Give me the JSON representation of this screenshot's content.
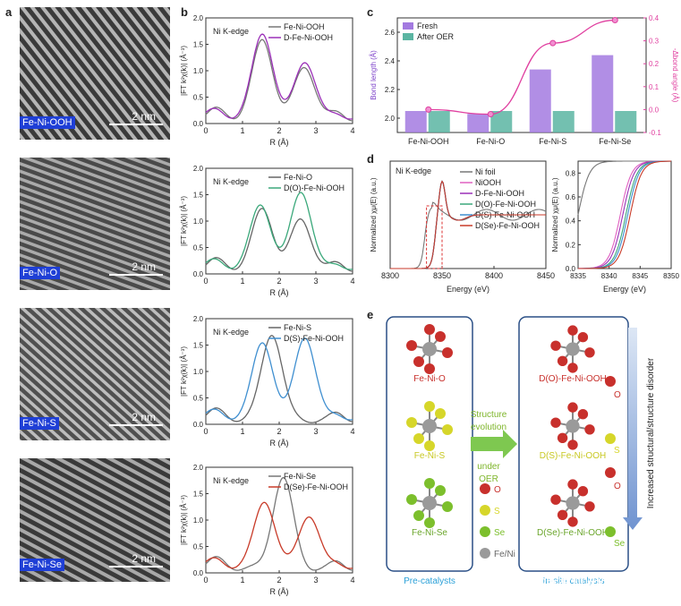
{
  "panel_labels": {
    "a": "a",
    "b": "b",
    "c": "c",
    "d": "d",
    "e": "e"
  },
  "tem_images": [
    {
      "label": "Fe-Ni-OOH",
      "scale": "2 nm"
    },
    {
      "label": "Fe-Ni-O",
      "scale": "2 nm"
    },
    {
      "label": "Fe-Ni-S",
      "scale": "2 nm"
    },
    {
      "label": "Fe-Ni-Se",
      "scale": "2 nm"
    }
  ],
  "chart_data": [
    {
      "type": "line",
      "panel": "b1",
      "title": "Ni K-edge",
      "xlabel": "R (Å)",
      "ylabel": "|FT k²χ(k)| (Å⁻³)",
      "xlim": [
        0,
        4
      ],
      "ylim": [
        0,
        2.0
      ],
      "xticks": [
        "0",
        "1",
        "2",
        "3",
        "4"
      ],
      "yticks": [
        "0.0",
        "0.5",
        "1.0",
        "1.5",
        "2.0"
      ],
      "series": [
        {
          "name": "Fe-Ni-OOH",
          "color": "#777777",
          "peaks": [
            [
              1.55,
              1.5
            ],
            [
              2.7,
              1.0
            ]
          ]
        },
        {
          "name": "D-Fe-Ni-OOH",
          "color": "#9b30b8",
          "peaks": [
            [
              1.55,
              1.65
            ],
            [
              2.7,
              1.12
            ]
          ]
        }
      ]
    },
    {
      "type": "line",
      "panel": "b2",
      "title": "Ni K-edge",
      "xlabel": "R (Å)",
      "ylabel": "|FT k²χ(k)| (Å⁻³)",
      "xlim": [
        0,
        4
      ],
      "ylim": [
        0,
        2.0
      ],
      "xticks": [
        "0",
        "1",
        "2",
        "3",
        "4"
      ],
      "yticks": [
        "0.0",
        "0.5",
        "1.0",
        "1.5",
        "2.0"
      ],
      "series": [
        {
          "name": "Fe-Ni-O",
          "color": "#666666",
          "peaks": [
            [
              1.55,
              1.15
            ],
            [
              2.6,
              0.95
            ]
          ]
        },
        {
          "name": "D(O)-Fe-Ni-OOH",
          "color": "#3aa87a",
          "peaks": [
            [
              1.5,
              1.25
            ],
            [
              2.6,
              1.5
            ]
          ]
        }
      ]
    },
    {
      "type": "line",
      "panel": "b3",
      "title": "Ni K-edge",
      "xlabel": "R (Å)",
      "ylabel": "|FT k²χ(k)| (Å⁻³)",
      "xlim": [
        0,
        4
      ],
      "ylim": [
        0,
        2.0
      ],
      "xticks": [
        "0",
        "1",
        "2",
        "3",
        "4"
      ],
      "yticks": [
        "0.0",
        "0.5",
        "1.0",
        "1.5",
        "2.0"
      ],
      "series": [
        {
          "name": "Fe-Ni-S",
          "color": "#666666",
          "peaks": [
            [
              1.8,
              1.65
            ]
          ]
        },
        {
          "name": "D(S)-Fe-Ni-OOH",
          "color": "#3f8fd0",
          "peaks": [
            [
              1.55,
              1.5
            ],
            [
              2.7,
              1.6
            ]
          ]
        }
      ]
    },
    {
      "type": "line",
      "panel": "b4",
      "title": "Ni K-edge",
      "xlabel": "R (Å)",
      "ylabel": "|FT k²χ(k)| (Å⁻³)",
      "xlim": [
        0,
        4
      ],
      "ylim": [
        0,
        2.0
      ],
      "xticks": [
        "0",
        "1",
        "2",
        "3",
        "4"
      ],
      "yticks": [
        "0.0",
        "0.5",
        "1.0",
        "1.5",
        "2.0"
      ],
      "series": [
        {
          "name": "Fe-Ni-Se",
          "color": "#777777",
          "peaks": [
            [
              2.1,
              1.72
            ]
          ]
        },
        {
          "name": "D(Se)-Fe-Ni-OOH",
          "color": "#c83a28",
          "peaks": [
            [
              1.6,
              1.3
            ],
            [
              2.8,
              1.02
            ]
          ]
        }
      ]
    },
    {
      "type": "bar",
      "panel": "c",
      "categories": [
        "Fe-Ni-OOH",
        "Fe-Ni-O",
        "Fe-Ni-S",
        "Fe-Ni-Se"
      ],
      "series": [
        {
          "name": "Fresh",
          "values": [
            2.05,
            2.03,
            2.34,
            2.44
          ],
          "color": "#a37ae0"
        },
        {
          "name": "After OER",
          "values": [
            2.05,
            2.05,
            2.05,
            2.05
          ],
          "color": "#5bb5a2"
        }
      ],
      "ylabel": "Bond length (Å)",
      "ylim": [
        1.9,
        2.7
      ],
      "yticks": [
        "2.0",
        "2.2",
        "2.4",
        "2.6"
      ],
      "y2label": "-Δbond angle (Å)",
      "y2lim": [
        -0.1,
        0.4
      ],
      "y2ticks": [
        "-0.1",
        "0.0",
        "0.1",
        "0.2",
        "0.3",
        "0.4"
      ],
      "line": {
        "name": "-Δbond angle",
        "values": [
          0.0,
          -0.02,
          0.29,
          0.39
        ],
        "color": "#e040a0"
      }
    },
    {
      "type": "line",
      "panel": "d",
      "title": "Ni K-edge",
      "xlabel": "Energy (eV)",
      "ylabel": "Normalized χμ(E) (a.u.)",
      "xlim": [
        8300,
        8450
      ],
      "xticks": [
        "8300",
        "8350",
        "8400",
        "8450"
      ],
      "series": [
        {
          "name": "Ni foil",
          "color": "#777777"
        },
        {
          "name": "NiOOH",
          "color": "#e060c0"
        },
        {
          "name": "D-Fe-Ni-OOH",
          "color": "#9b30b8"
        },
        {
          "name": "D(O)-Fe-Ni-OOH",
          "color": "#3aa87a"
        },
        {
          "name": "D(S)-Fe-Ni-OOH",
          "color": "#3f8fd0"
        },
        {
          "name": "D(Se)-Fe-Ni-OOH",
          "color": "#c83a28"
        }
      ]
    },
    {
      "type": "line",
      "panel": "d-inset",
      "xlabel": "Energy (eV)",
      "ylabel": "Normalized χμ(E) (a.u.)",
      "xlim": [
        8335,
        8350
      ],
      "xticks": [
        "8335",
        "8340",
        "8345",
        "8350"
      ],
      "ylim": [
        0,
        0.9
      ],
      "yticks": [
        "0.0",
        "0.2",
        "0.4",
        "0.6",
        "0.8"
      ]
    }
  ],
  "scheme": {
    "precat": [
      "Fe-Ni-O",
      "Fe-Ni-S",
      "Fe-Ni-Se"
    ],
    "products": [
      "D(O)-Fe-Ni-OOH",
      "D(S)-Fe-Ni-OOH",
      "D(Se)-Fe-Ni-OOH"
    ],
    "arrow_text": [
      "Structure",
      "evolution",
      "under",
      "OER"
    ],
    "legend": [
      "O",
      "S",
      "Se",
      "Fe/Ni"
    ],
    "leaving": [
      "O",
      "S",
      "O",
      "Se"
    ],
    "precat_caption": "Pre-catalysts",
    "post_caption": "In-situ catalysts",
    "side_text": "Increased structural/structure disorder",
    "watermark": "知乎 @朱老师讲VASP"
  }
}
